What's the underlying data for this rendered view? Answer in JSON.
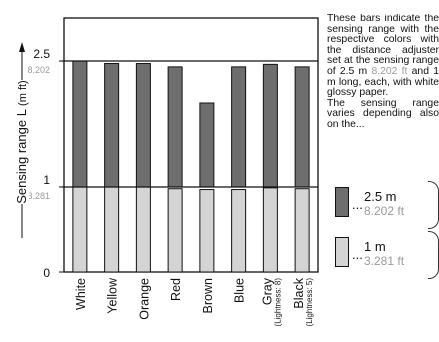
{
  "chart_data": {
    "type": "bar",
    "ylabel": "Sensing range L",
    "yunit": "(m ft)",
    "ylim": [
      0,
      2.8
    ],
    "yticks": [
      {
        "value": 0,
        "m": "0",
        "ft": ""
      },
      {
        "value": 1,
        "m": "1",
        "ft": "3.281"
      },
      {
        "value": 2.5,
        "m": "2.5",
        "ft": "8.202"
      }
    ],
    "categories": [
      {
        "name": "White",
        "sub": ""
      },
      {
        "name": "Yellow",
        "sub": ""
      },
      {
        "name": "Orange",
        "sub": ""
      },
      {
        "name": "Red",
        "sub": ""
      },
      {
        "name": "Brown",
        "sub": ""
      },
      {
        "name": "Blue",
        "sub": ""
      },
      {
        "name": "Gray",
        "sub": "(Lightness: 8)"
      },
      {
        "name": "Black",
        "sub": "(Lightness: 5)"
      }
    ],
    "series": [
      {
        "values": [
          2.5,
          2.47,
          2.47,
          2.43,
          2.0,
          2.43,
          2.46,
          2.43
        ],
        "color": "#6e6e6e"
      },
      {
        "values": [
          1.0,
          1.0,
          1.0,
          0.98,
          0.97,
          0.97,
          0.99,
          0.98
        ],
        "color": "#d4d4d4"
      }
    ],
    "grid": false
  },
  "description": {
    "text1": "These bars indicate the sensing range with the respective colors with the distance adjuster set at the sensing range of 2.5 m ",
    "ft1": "8.202 ft",
    "text2": " and 1 m long, each, with white glossy paper.",
    "text3": "The sensing range varies depending also on the..."
  },
  "legend": [
    {
      "dots": "...",
      "m": "2.5 m",
      "ft": "8.202 ft",
      "color": "#6e6e6e"
    },
    {
      "dots": "...",
      "m": "1 m",
      "ft": "3.281 ft",
      "color": "#d4d4d4"
    }
  ]
}
